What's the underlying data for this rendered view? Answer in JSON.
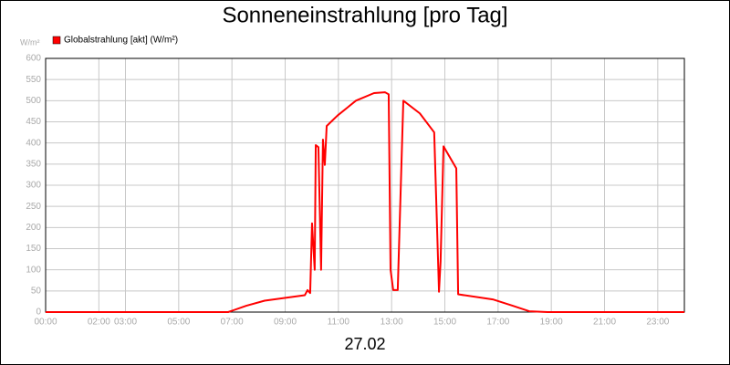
{
  "chart_data": {
    "type": "line",
    "title": "Sonneneinstrahlung [pro Tag]",
    "ylabel": "W/m²",
    "xlabel": "27.02",
    "x": [
      0,
      6.86,
      7.54,
      8.23,
      9.74,
      9.84,
      9.94,
      10.01,
      10.11,
      10.15,
      10.25,
      10.35,
      10.42,
      10.49,
      10.56,
      10.97,
      11.66,
      12.34,
      12.75,
      12.89,
      12.96,
      13.06,
      13.23,
      13.44,
      14.06,
      14.6,
      14.78,
      14.84,
      14.95,
      15.43,
      15.5,
      16.8,
      17.55,
      18.17,
      18.86,
      24
    ],
    "series": [
      {
        "name": "Globalstrahlung [akt] (W/m²)",
        "color": "#ff0000",
        "values": [
          0,
          0,
          15,
          27,
          40,
          52,
          45,
          210,
          100,
          395,
          390,
          100,
          408,
          348,
          440,
          465,
          500,
          518,
          520,
          515,
          100,
          52,
          52,
          500,
          470,
          425,
          48,
          120,
          392,
          340,
          42,
          30,
          15,
          2,
          0,
          0
        ]
      }
    ],
    "xlim": [
      0,
      24
    ],
    "xticks": [
      {
        "value": 0,
        "label": "00:00"
      },
      {
        "value": 2,
        "label": "02:00"
      },
      {
        "value": 3,
        "label": "03:00"
      },
      {
        "value": 5,
        "label": "05:00"
      },
      {
        "value": 7,
        "label": "07:00"
      },
      {
        "value": 9,
        "label": "09:00"
      },
      {
        "value": 11,
        "label": "11:00"
      },
      {
        "value": 13,
        "label": "13:00"
      },
      {
        "value": 15,
        "label": "15:00"
      },
      {
        "value": 17,
        "label": "17:00"
      },
      {
        "value": 19,
        "label": "19:00"
      },
      {
        "value": 21,
        "label": "21:00"
      },
      {
        "value": 23,
        "label": "23:00"
      }
    ],
    "ylim": [
      0,
      600
    ],
    "yticks": [
      0,
      50,
      100,
      150,
      200,
      250,
      300,
      350,
      400,
      450,
      500,
      550,
      600
    ],
    "grid": true
  }
}
